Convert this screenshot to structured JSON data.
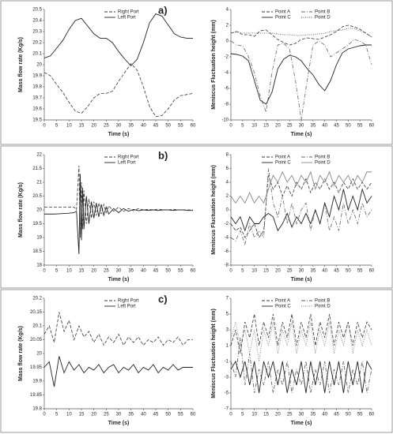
{
  "chart_data": [
    {
      "type": "line",
      "panel_label": "a)",
      "xlabel": "Time (s)",
      "ylabel": "Mass flow rate (Kg/s)",
      "x": [
        0,
        2.5,
        5,
        7.5,
        10,
        12.5,
        15,
        17.5,
        20,
        22.5,
        25,
        27.5,
        30,
        32.5,
        35,
        37.5,
        40,
        42.5,
        45,
        47.5,
        50,
        52.5,
        55,
        57.5,
        60
      ],
      "xlim": [
        0,
        60
      ],
      "xticks": [
        0,
        5,
        10,
        15,
        20,
        25,
        30,
        35,
        40,
        45,
        50,
        55,
        60
      ],
      "ylim": [
        19.5,
        20.5
      ],
      "yticks": [
        19.5,
        19.6,
        19.7,
        19.8,
        19.9,
        20,
        20.1,
        20.2,
        20.3,
        20.4,
        20.5
      ],
      "legend_position": "top",
      "series": [
        {
          "name": "Right Port",
          "color": "#333333",
          "style": "dashed",
          "values": [
            19.93,
            19.9,
            19.82,
            19.75,
            19.66,
            19.58,
            19.56,
            19.62,
            19.7,
            19.74,
            19.74,
            19.76,
            19.85,
            19.93,
            20.01,
            19.95,
            19.8,
            19.62,
            19.53,
            19.54,
            19.6,
            19.68,
            19.72,
            19.73,
            19.74
          ]
        },
        {
          "name": "Left Port",
          "color": "#222222",
          "style": "solid",
          "values": [
            20.06,
            20.08,
            20.15,
            20.22,
            20.32,
            20.4,
            20.42,
            20.35,
            20.28,
            20.24,
            20.24,
            20.2,
            20.12,
            20.05,
            19.99,
            20.05,
            20.2,
            20.38,
            20.46,
            20.44,
            20.36,
            20.28,
            20.25,
            20.24,
            20.24
          ]
        }
      ]
    },
    {
      "type": "line",
      "xlabel": "Time (s)",
      "ylabel": "Meniscus Fluctuation height (mm)",
      "x": [
        0,
        2.5,
        5,
        7.5,
        10,
        12.5,
        15,
        17.5,
        20,
        22.5,
        25,
        27.5,
        30,
        32.5,
        35,
        37.5,
        40,
        42.5,
        45,
        47.5,
        50,
        52.5,
        55,
        57.5,
        60
      ],
      "xlim": [
        0,
        60
      ],
      "xticks": [
        0,
        5,
        10,
        15,
        20,
        25,
        30,
        35,
        40,
        45,
        50,
        55,
        60
      ],
      "ylim": [
        -10,
        4
      ],
      "yticks": [
        -10,
        -8,
        -6,
        -4,
        -2,
        0,
        2,
        4
      ],
      "legend_position": "top",
      "series": [
        {
          "name": "Point A",
          "color": "#333333",
          "style": "dashed",
          "values": [
            1,
            1.2,
            0.8,
            0.8,
            0.6,
            1.3,
            1.4,
            0.8,
            0.2,
            -0.2,
            -0.5,
            -0.3,
            0.2,
            0.4,
            0.3,
            0.2,
            0.5,
            0.8,
            1.2,
            1.8,
            2,
            1.8,
            1.5,
            1,
            0.5
          ]
        },
        {
          "name": "Point B",
          "color": "#666666",
          "style": "dash-dot",
          "values": [
            0,
            -0.5,
            -0.6,
            -2,
            -4,
            -7,
            -9,
            -4,
            -0.5,
            -0.3,
            -1,
            -5,
            -10,
            -5,
            -0.5,
            0,
            -0.5,
            -2,
            -1.5,
            -1,
            -0.5,
            0.2,
            0,
            -0.5,
            -3
          ]
        },
        {
          "name": "Point C",
          "color": "#222222",
          "style": "solid",
          "values": [
            -1.6,
            -1.7,
            -1.9,
            -2.5,
            -5,
            -7.5,
            -8,
            -6.5,
            -3.5,
            -2.3,
            -1.8,
            -2,
            -2.5,
            -3.5,
            -4.3,
            -5.5,
            -6.3,
            -5,
            -3,
            -1.5,
            -1,
            -0.8,
            -0.6,
            -0.5,
            -0.5
          ]
        },
        {
          "name": "Point D",
          "color": "#444444",
          "style": "dotted",
          "values": [
            1,
            1.2,
            1,
            1,
            1,
            1,
            1,
            1,
            0.9,
            0.8,
            0.8,
            0.7,
            0.7,
            0.8,
            0.8,
            0.9,
            1,
            1.2,
            1.3,
            1.4,
            1.6,
            1.6,
            1.3,
            1,
            0.5
          ]
        }
      ]
    },
    {
      "type": "line",
      "panel_label": "b)",
      "xlabel": "Time (s)",
      "ylabel": "Mass flow rate (Kg/s)",
      "x": [
        0,
        2,
        4,
        6,
        8,
        10,
        12,
        13,
        14,
        14.5,
        15,
        15.5,
        16,
        17,
        18,
        19,
        20,
        21,
        22,
        23,
        24,
        25,
        26,
        28,
        30,
        32,
        34,
        36,
        38,
        40,
        42,
        44,
        46,
        48,
        50,
        52,
        54,
        56,
        58,
        60
      ],
      "xlim": [
        0,
        60
      ],
      "xticks": [
        0,
        5,
        10,
        15,
        20,
        25,
        30,
        35,
        40,
        45,
        50,
        55,
        60
      ],
      "ylim": [
        18,
        22
      ],
      "yticks": [
        18,
        18.5,
        19,
        19.5,
        20,
        20.5,
        21,
        21.5,
        22
      ],
      "legend_position": "top",
      "series": [
        {
          "name": "Right Port",
          "color": "#333333",
          "style": "dashed",
          "values": [
            20.1,
            20.1,
            20.1,
            20.1,
            20.1,
            20.1,
            20.1,
            20.0,
            21.6,
            19.0,
            21.0,
            19.3,
            20.7,
            19.5,
            20.4,
            19.7,
            20.3,
            19.8,
            20.25,
            19.85,
            20.2,
            19.9,
            20.15,
            19.95,
            20.1,
            19.95,
            20.05,
            19.97,
            20.05,
            20.0,
            20.02,
            20.0,
            20.03,
            20.0,
            20.0,
            20.02,
            20.0,
            20.0,
            20.0,
            20.0
          ]
        },
        {
          "name": "Left Port",
          "color": "#222222",
          "style": "solid",
          "values": [
            19.85,
            19.85,
            19.85,
            19.86,
            19.87,
            19.88,
            19.9,
            19.95,
            18.4,
            21.3,
            18.9,
            20.8,
            19.3,
            20.5,
            19.5,
            20.3,
            19.7,
            20.25,
            19.75,
            20.2,
            19.8,
            20.1,
            19.85,
            20.05,
            19.9,
            20.05,
            19.95,
            20.02,
            19.97,
            20.0,
            19.98,
            20.0,
            19.98,
            20.0,
            20.0,
            19.98,
            20.0,
            20.0,
            19.98,
            19.98
          ]
        }
      ]
    },
    {
      "type": "line",
      "xlabel": "Time (s)",
      "ylabel": "Meniscus Fluctuation height (mm)",
      "x": [
        0,
        2,
        4,
        6,
        8,
        10,
        12,
        14,
        16,
        18,
        20,
        22,
        24,
        26,
        28,
        30,
        32,
        34,
        36,
        38,
        40,
        42,
        44,
        46,
        48,
        50,
        52,
        54,
        56,
        58,
        60
      ],
      "xlim": [
        0,
        60
      ],
      "xticks": [
        0,
        5,
        10,
        15,
        20,
        25,
        30,
        35,
        40,
        45,
        50,
        55,
        60
      ],
      "ylim": [
        -8,
        8
      ],
      "yticks": [
        -8,
        -6,
        -4,
        -2,
        0,
        2,
        4,
        6,
        8
      ],
      "legend_position": "top",
      "series": [
        {
          "name": "Point A",
          "color": "#333333",
          "style": "dashed",
          "values": [
            -2,
            -3,
            -2.5,
            -4,
            -3,
            -2,
            -4,
            -3,
            5,
            3,
            4,
            2,
            3.5,
            2,
            4,
            3,
            4.5,
            2.5,
            4,
            3,
            4.5,
            3,
            4,
            2.5,
            4,
            3,
            4.5,
            3,
            4,
            3,
            4
          ]
        },
        {
          "name": "Point B",
          "color": "#666666",
          "style": "dash-dot",
          "values": [
            -4,
            -4.5,
            -3,
            -5,
            -2,
            -4,
            -3,
            -4,
            6,
            1,
            -1,
            2,
            -2,
            1,
            -2,
            0,
            1,
            -3,
            0,
            -2,
            1,
            -3,
            -1,
            -3,
            1,
            -2,
            0,
            -2,
            1,
            -1,
            0
          ]
        },
        {
          "name": "Point C",
          "color": "#222222",
          "style": "solid",
          "values": [
            -1,
            -2,
            -1,
            -3,
            -1,
            -2,
            -2,
            -1,
            -0.5,
            -1,
            -3,
            -2,
            -0.5,
            -2.5,
            -1,
            -2,
            -0.5,
            -2,
            0,
            -2,
            1,
            -1,
            2,
            0,
            3,
            0,
            2,
            0,
            3,
            1,
            2
          ]
        },
        {
          "name": "Point D",
          "color": "#888888",
          "style": "solid",
          "values": [
            2,
            1,
            2,
            1,
            2.5,
            1,
            2,
            1,
            3,
            5,
            4,
            5.5,
            4,
            5,
            3.5,
            5,
            4,
            5.5,
            3,
            5,
            4,
            5.5,
            3.5,
            5,
            4,
            5,
            3.5,
            5,
            4,
            5.5,
            5.5
          ]
        }
      ]
    },
    {
      "type": "line",
      "panel_label": "c)",
      "xlabel": "Time (s)",
      "ylabel": "Mass flow rate (Kg/s)",
      "x": [
        0,
        2,
        4,
        6,
        8,
        10,
        12,
        14,
        16,
        18,
        20,
        22,
        24,
        26,
        28,
        30,
        32,
        34,
        36,
        38,
        40,
        42,
        44,
        46,
        48,
        50,
        52,
        54,
        56,
        58,
        60
      ],
      "xlim": [
        0,
        60
      ],
      "xticks": [
        0,
        5,
        10,
        15,
        20,
        25,
        30,
        35,
        40,
        45,
        50,
        55,
        60
      ],
      "ylim": [
        19.8,
        20.2
      ],
      "yticks": [
        19.8,
        19.85,
        19.9,
        19.95,
        20,
        20.05,
        20.1,
        20.15,
        20.2
      ],
      "legend_position": "top",
      "series": [
        {
          "name": "Right Port",
          "color": "#333333",
          "style": "dashed",
          "values": [
            20.07,
            20.1,
            20.04,
            20.15,
            20.08,
            20.12,
            20.05,
            20.1,
            20.06,
            20.08,
            20.04,
            20.07,
            20.03,
            20.06,
            20.04,
            20.07,
            20.03,
            20.06,
            20.04,
            20.06,
            20.03,
            20.05,
            20.04,
            20.06,
            20.03,
            20.05,
            20.04,
            20.06,
            20.03,
            20.05,
            20.05
          ]
        },
        {
          "name": "Left Port",
          "color": "#222222",
          "style": "solid",
          "values": [
            19.95,
            19.97,
            19.88,
            19.99,
            19.93,
            19.97,
            19.94,
            19.96,
            19.93,
            19.95,
            19.94,
            19.96,
            19.93,
            19.95,
            19.96,
            19.93,
            19.95,
            19.94,
            19.96,
            19.93,
            19.95,
            19.94,
            19.96,
            19.93,
            19.95,
            19.94,
            19.96,
            19.94,
            19.95,
            19.95,
            19.95
          ]
        }
      ]
    },
    {
      "type": "line",
      "xlabel": "Time (s)",
      "ylabel": "Meniscus Fluctuation height (mm)",
      "x": [
        0,
        2,
        4,
        6,
        8,
        10,
        12,
        14,
        16,
        18,
        20,
        22,
        24,
        26,
        28,
        30,
        32,
        34,
        36,
        38,
        40,
        42,
        44,
        46,
        48,
        50,
        52,
        54,
        56,
        58,
        60
      ],
      "xlim": [
        0,
        60
      ],
      "xticks": [
        0,
        5,
        10,
        15,
        20,
        25,
        30,
        35,
        40,
        45,
        50,
        55,
        60
      ],
      "ylim": [
        -7,
        7
      ],
      "yticks": [
        -7,
        -5,
        -3,
        -1,
        1,
        3,
        5,
        7
      ],
      "legend_position": "top",
      "series": [
        {
          "name": "Point A",
          "color": "#333333",
          "style": "dashed",
          "values": [
            1,
            3,
            0,
            4,
            2,
            5,
            1,
            4,
            2,
            5,
            1,
            4,
            2,
            5,
            1,
            4,
            2,
            5,
            1,
            4,
            2,
            5,
            1,
            4,
            2,
            4,
            1,
            4,
            2,
            4,
            3
          ]
        },
        {
          "name": "Point B",
          "color": "#555555",
          "style": "dash-dot",
          "values": [
            -1,
            -3,
            2,
            -4,
            0,
            -5,
            -2,
            -4,
            -1,
            -5,
            -2,
            -4,
            -1,
            -5,
            -2,
            -4,
            -1,
            -5,
            -2,
            -4,
            -1,
            -5,
            -2,
            -4,
            -1,
            -5,
            -2,
            -4,
            -1,
            -5,
            -2
          ]
        },
        {
          "name": "Point C",
          "color": "#222222",
          "style": "solid",
          "values": [
            -2,
            -1,
            -3,
            -1,
            -4,
            -1,
            -5,
            -1,
            -3,
            -1,
            -4,
            -1,
            -5,
            -2,
            -4,
            -1,
            -5,
            -1,
            -4,
            -1,
            -5,
            -1,
            -4,
            -1,
            -5,
            -1,
            -4,
            -1,
            -5,
            -1,
            -2
          ]
        },
        {
          "name": "Point D",
          "color": "#777777",
          "style": "dotted",
          "values": [
            2,
            4,
            1,
            3,
            0,
            3,
            -1,
            3,
            1,
            4,
            0,
            3,
            1,
            4,
            0,
            3,
            1,
            4,
            0,
            3,
            1,
            4,
            0,
            3,
            1,
            4,
            0,
            3,
            1,
            3,
            1
          ]
        }
      ]
    }
  ]
}
